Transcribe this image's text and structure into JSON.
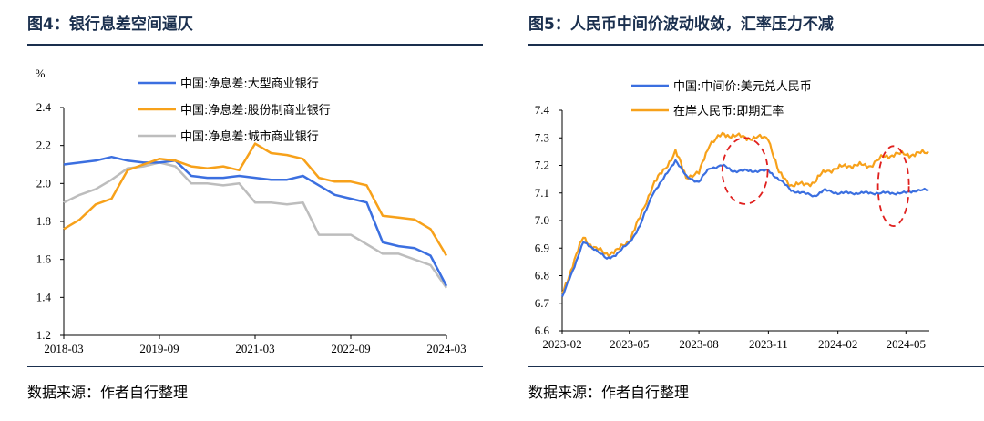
{
  "left": {
    "title": "图4：银行息差空间逼仄",
    "source": "数据来源：作者自行整理",
    "colors": {
      "large": "#3b6fe0",
      "joint": "#f7a11a",
      "city": "#bdbdbd"
    },
    "chart_data": {
      "type": "line",
      "ylabel": "%",
      "ylim": [
        1.2,
        2.4
      ],
      "yticks": [
        "1.2",
        "1.4",
        "1.6",
        "1.8",
        "2.0",
        "2.2",
        "2.4"
      ],
      "xlim": [
        "2018-03",
        "2024-03"
      ],
      "xticks": [
        "2018-03",
        "2019-09",
        "2021-03",
        "2022-09",
        "2024-03"
      ],
      "legend_position": "top",
      "x": [
        "2018-03",
        "2018-06",
        "2018-09",
        "2018-12",
        "2019-03",
        "2019-06",
        "2019-09",
        "2019-12",
        "2020-03",
        "2020-06",
        "2020-09",
        "2020-12",
        "2021-03",
        "2021-06",
        "2021-09",
        "2021-12",
        "2022-03",
        "2022-06",
        "2022-09",
        "2022-12",
        "2023-03",
        "2023-06",
        "2023-09",
        "2023-12",
        "2024-03"
      ],
      "series": [
        {
          "name": "中国:净息差:大型商业银行",
          "values": [
            2.1,
            2.11,
            2.12,
            2.14,
            2.12,
            2.11,
            2.11,
            2.12,
            2.04,
            2.03,
            2.03,
            2.04,
            2.03,
            2.02,
            2.02,
            2.04,
            1.99,
            1.94,
            1.92,
            1.9,
            1.69,
            1.67,
            1.66,
            1.62,
            1.46
          ]
        },
        {
          "name": "中国:净息差:股份制商业银行",
          "values": [
            1.76,
            1.81,
            1.89,
            1.92,
            2.07,
            2.1,
            2.13,
            2.12,
            2.09,
            2.08,
            2.09,
            2.07,
            2.21,
            2.16,
            2.15,
            2.13,
            2.03,
            2.01,
            2.01,
            1.99,
            1.83,
            1.82,
            1.81,
            1.76,
            1.62
          ]
        },
        {
          "name": "中国:净息差:城市商业银行",
          "values": [
            1.9,
            1.94,
            1.97,
            2.02,
            2.08,
            2.09,
            2.11,
            2.09,
            2.0,
            2.0,
            1.99,
            2.0,
            1.9,
            1.9,
            1.89,
            1.9,
            1.73,
            1.73,
            1.73,
            1.68,
            1.63,
            1.63,
            1.6,
            1.57,
            1.45
          ]
        }
      ]
    }
  },
  "right": {
    "title": "图5：人民币中间价波动收敛，汇率压力不减",
    "source": "数据来源：作者自行整理",
    "colors": {
      "mid": "#3b6fe0",
      "onshore": "#f7a11a",
      "highlight": "#e0201e"
    },
    "chart_data": {
      "type": "line",
      "ylim": [
        6.6,
        7.4
      ],
      "yticks": [
        "6.6",
        "6.7",
        "6.8",
        "6.9",
        "7.0",
        "7.1",
        "7.2",
        "7.3",
        "7.4"
      ],
      "xlim": [
        "2023-02-01",
        "2024-06-01"
      ],
      "xticks": [
        "2023-02",
        "2023-05",
        "2023-08",
        "2023-11",
        "2024-02",
        "2024-05"
      ],
      "legend_position": "top",
      "highlighted_regions": [
        {
          "from": "2023-09-01",
          "to": "2023-10-31",
          "ylim": [
            7.06,
            7.3
          ]
        },
        {
          "from": "2024-03-25",
          "to": "2024-05-05",
          "ylim": [
            6.98,
            7.27
          ]
        }
      ],
      "series": [
        {
          "name": "中国:中间价:美元兑人民币",
          "x": [
            "2023-02-01",
            "2023-02-15",
            "2023-03-01",
            "2023-03-15",
            "2023-04-01",
            "2023-04-15",
            "2023-05-01",
            "2023-05-15",
            "2023-06-01",
            "2023-06-15",
            "2023-07-01",
            "2023-07-15",
            "2023-08-01",
            "2023-08-15",
            "2023-09-01",
            "2023-09-15",
            "2023-10-01",
            "2023-10-15",
            "2023-11-01",
            "2023-11-15",
            "2023-12-01",
            "2023-12-15",
            "2024-01-01",
            "2024-01-15",
            "2024-02-01",
            "2024-02-15",
            "2024-03-01",
            "2024-03-15",
            "2024-04-01",
            "2024-04-15",
            "2024-05-01",
            "2024-05-15",
            "2024-05-31"
          ],
          "values": [
            6.72,
            6.82,
            6.92,
            6.9,
            6.86,
            6.88,
            6.92,
            6.98,
            7.1,
            7.15,
            7.22,
            7.16,
            7.14,
            7.19,
            7.2,
            7.18,
            7.18,
            7.18,
            7.18,
            7.15,
            7.11,
            7.1,
            7.09,
            7.11,
            7.1,
            7.1,
            7.1,
            7.1,
            7.1,
            7.1,
            7.1,
            7.11,
            7.11
          ]
        },
        {
          "name": "在岸人民币:即期汇率",
          "x": [
            "2023-02-01",
            "2023-02-15",
            "2023-03-01",
            "2023-03-15",
            "2023-04-01",
            "2023-04-15",
            "2023-05-01",
            "2023-05-15",
            "2023-06-01",
            "2023-06-15",
            "2023-07-01",
            "2023-07-15",
            "2023-08-01",
            "2023-08-15",
            "2023-09-01",
            "2023-09-15",
            "2023-10-01",
            "2023-10-15",
            "2023-11-01",
            "2023-11-15",
            "2023-12-01",
            "2023-12-15",
            "2024-01-01",
            "2024-01-15",
            "2024-02-01",
            "2024-02-15",
            "2024-03-01",
            "2024-03-15",
            "2024-04-01",
            "2024-04-15",
            "2024-05-01",
            "2024-05-15",
            "2024-05-31"
          ],
          "values": [
            6.73,
            6.84,
            6.94,
            6.9,
            6.88,
            6.89,
            6.93,
            7.01,
            7.13,
            7.18,
            7.25,
            7.16,
            7.17,
            7.28,
            7.31,
            7.31,
            7.3,
            7.3,
            7.3,
            7.17,
            7.13,
            7.13,
            7.14,
            7.18,
            7.19,
            7.2,
            7.2,
            7.2,
            7.23,
            7.24,
            7.24,
            7.24,
            7.25
          ]
        }
      ]
    }
  }
}
